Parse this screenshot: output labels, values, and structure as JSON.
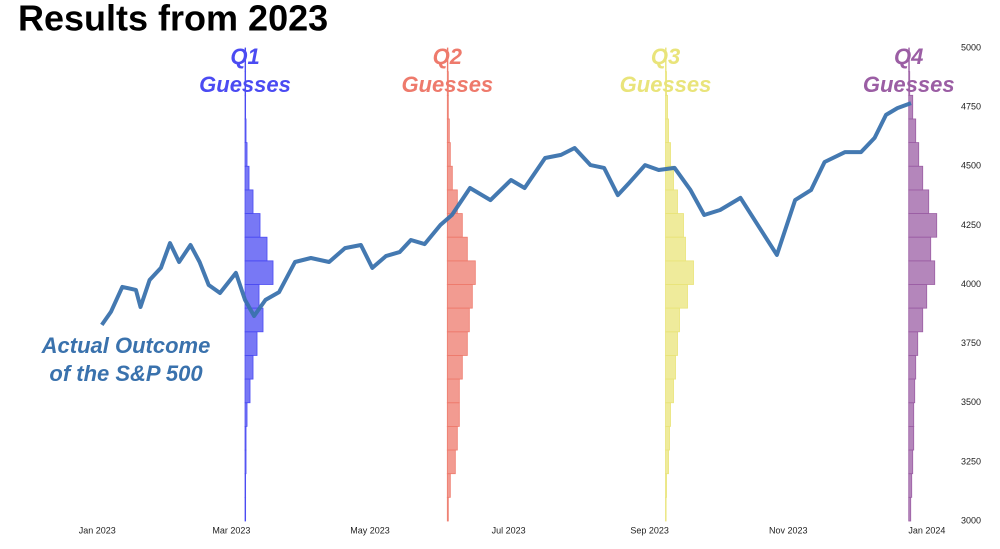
{
  "chart_data": {
    "type": "line",
    "title": "Results from 2023",
    "xlim": [
      -34,
      380
    ],
    "xticks": [
      {
        "value": 0,
        "label": "Jan 2023"
      },
      {
        "value": 59,
        "label": "Mar 2023"
      },
      {
        "value": 120,
        "label": "May 2023"
      },
      {
        "value": 181,
        "label": "Jul 2023"
      },
      {
        "value": 243,
        "label": "Sep 2023"
      },
      {
        "value": 304,
        "label": "Nov 2023"
      },
      {
        "value": 365,
        "label": "Jan 2024"
      }
    ],
    "ylim": [
      3000,
      5000
    ],
    "yticks": [
      3000,
      3250,
      3500,
      3750,
      4000,
      4250,
      4500,
      4750,
      5000
    ],
    "grid": false,
    "series": [
      {
        "name": "Actual Outcome\nof the S&P 500",
        "color": "#3a72ad",
        "x": [
          2,
          6,
          11,
          17,
          19,
          23,
          28,
          32,
          36,
          41,
          45,
          49,
          54,
          61,
          65,
          69,
          74,
          80,
          87,
          94,
          102,
          109,
          116,
          121,
          127,
          133,
          138,
          144,
          151,
          156,
          164,
          173,
          182,
          188,
          197,
          204,
          210,
          217,
          223,
          229,
          234,
          241,
          247,
          254,
          261,
          267,
          274,
          283,
          292,
          299,
          307,
          314,
          320,
          329,
          336,
          342,
          347,
          352,
          358
        ],
        "values": [
          3829,
          3884,
          3990,
          3977,
          3905,
          4019,
          4070,
          4175,
          4095,
          4167,
          4095,
          3998,
          3964,
          4049,
          3935,
          3867,
          3935,
          3968,
          4095,
          4112,
          4095,
          4154,
          4167,
          4070,
          4120,
          4137,
          4188,
          4171,
          4252,
          4294,
          4408,
          4357,
          4442,
          4408,
          4535,
          4548,
          4577,
          4505,
          4493,
          4378,
          4429,
          4505,
          4484,
          4493,
          4399,
          4294,
          4315,
          4366,
          4230,
          4125,
          4357,
          4399,
          4518,
          4560,
          4560,
          4620,
          4717,
          4746,
          4767
        ]
      }
    ],
    "histograms": [
      {
        "name": "Q1\nGuesses",
        "color": "#4b4bf2",
        "x": 65,
        "bins": [
          3000,
          3100,
          3200,
          3300,
          3400,
          3500,
          3600,
          3700,
          3800,
          3900,
          4000,
          4100,
          4200,
          4300,
          4400,
          4500,
          4600,
          4700,
          4800,
          4900,
          5000
        ],
        "counts": [
          0,
          0,
          1,
          1,
          2,
          5,
          8,
          12,
          18,
          14,
          28,
          22,
          15,
          8,
          4,
          2,
          1,
          0,
          0,
          0
        ]
      },
      {
        "name": "Q2\nGuesses",
        "color": "#ee7a6c",
        "x": 154,
        "bins": [
          3000,
          3100,
          3200,
          3300,
          3400,
          3500,
          3600,
          3700,
          3800,
          3900,
          4000,
          4100,
          4200,
          4300,
          4400,
          4500,
          4600,
          4700,
          4800,
          4900,
          5000
        ],
        "counts": [
          1,
          3,
          8,
          10,
          12,
          12,
          15,
          20,
          22,
          25,
          28,
          20,
          15,
          10,
          5,
          3,
          2,
          1,
          1,
          0
        ]
      },
      {
        "name": "Q3\nGuesses",
        "color": "#e9e47a",
        "x": 250,
        "bins": [
          3000,
          3100,
          3200,
          3300,
          3400,
          3500,
          3600,
          3700,
          3800,
          3900,
          4000,
          4100,
          4200,
          4300,
          4400,
          4500,
          4600,
          4700,
          4800,
          4900,
          5000
        ],
        "counts": [
          0,
          1,
          3,
          4,
          5,
          8,
          10,
          12,
          14,
          22,
          28,
          20,
          18,
          12,
          8,
          5,
          3,
          2,
          1,
          0
        ]
      },
      {
        "name": "Q4\nGuesses",
        "color": "#9b5ea4",
        "x": 357,
        "bins": [
          3000,
          3100,
          3200,
          3300,
          3400,
          3500,
          3600,
          3700,
          3800,
          3900,
          4000,
          4100,
          4200,
          4300,
          4400,
          4500,
          4600,
          4700,
          4800,
          4900,
          5000
        ],
        "counts": [
          2,
          3,
          4,
          5,
          5,
          6,
          7,
          9,
          14,
          18,
          26,
          22,
          28,
          20,
          14,
          10,
          7,
          4,
          1,
          0
        ]
      }
    ]
  }
}
